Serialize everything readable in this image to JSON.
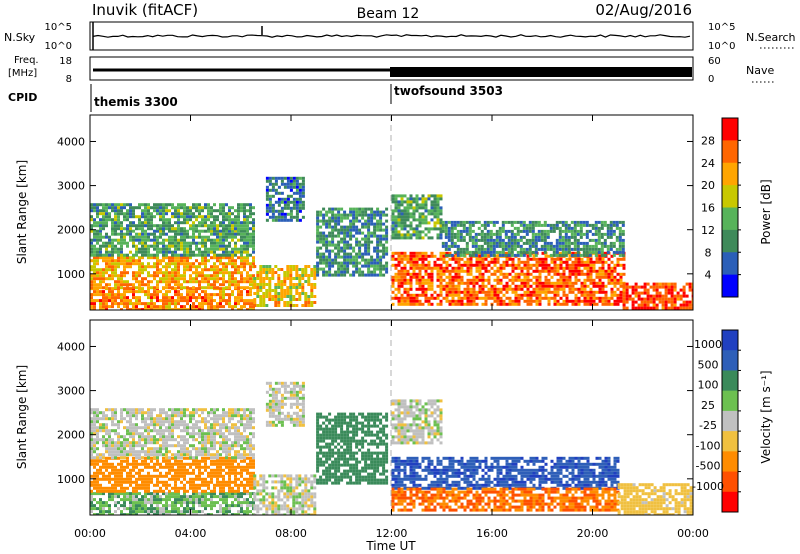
{
  "header": {
    "station": "Inuvik (fitACF)",
    "beam": "Beam 12",
    "date": "02/Aug/2016"
  },
  "status_panels": {
    "nsky_label": "N.Sky",
    "nsearch_label": "N.Search",
    "noise_ticks": [
      "10^5",
      "10^0"
    ],
    "freq_label_1": "Freq.",
    "freq_label_2": "[MHz]",
    "freq_ticks": [
      "18",
      "8"
    ],
    "nave_label": "Nave",
    "nave_ticks": [
      "60",
      "0"
    ],
    "cpid_label": "CPID",
    "cpid_segments": [
      {
        "name": "themis 3300",
        "start_hour": 0
      },
      {
        "name": "twofsound 3503",
        "start_hour": 12
      }
    ]
  },
  "x_axis": {
    "label": "Time UT",
    "ticks": [
      "00:00",
      "04:00",
      "08:00",
      "12:00",
      "16:00",
      "20:00",
      "00:00"
    ],
    "range_hours": [
      0,
      24
    ]
  },
  "y_axis": {
    "label": "Slant Range [km]",
    "ticks": [
      "4000",
      "3000",
      "2000",
      "1000"
    ],
    "range_km": [
      180,
      4600
    ]
  },
  "power_colorbar": {
    "label": "Power [dB]",
    "ticks": [
      "28",
      "24",
      "20",
      "16",
      "12",
      "8",
      "4"
    ],
    "colors": [
      "#0000ff",
      "#2b5fb8",
      "#3f8a5a",
      "#57b35a",
      "#c8c800",
      "#ffa500",
      "#ff6600",
      "#ff0000"
    ]
  },
  "velocity_colorbar": {
    "label": "Velocity [m s⁻¹]",
    "ticks": [
      "1000",
      "500",
      "100",
      "25",
      "-25",
      "-100",
      "-500",
      "-1000"
    ],
    "colors": [
      "#2040c0",
      "#2e5fb8",
      "#3a8a5a",
      "#6cc050",
      "#c0c0c0",
      "#f0c040",
      "#ff8c00",
      "#ff5000",
      "#ff0000"
    ]
  },
  "chart_data": [
    {
      "type": "heatmap",
      "panel": "power",
      "x": "UT hour",
      "y": "slant range (km)",
      "xlim": [
        0,
        24
      ],
      "ylim": [
        180,
        4600
      ],
      "zlabel": "Power [dB]",
      "zlim": [
        0,
        32
      ],
      "regions": [
        {
          "t": [
            0.0,
            6.5
          ],
          "r": [
            180,
            700
          ],
          "level": 24
        },
        {
          "t": [
            0.0,
            6.5
          ],
          "r": [
            700,
            1400
          ],
          "level": 22
        },
        {
          "t": [
            0.0,
            6.5
          ],
          "r": [
            1400,
            2000
          ],
          "level": 12
        },
        {
          "t": [
            0.0,
            6.5
          ],
          "r": [
            2000,
            2600
          ],
          "level": 12
        },
        {
          "t": [
            6.5,
            9.0
          ],
          "r": [
            300,
            1200
          ],
          "level": 20
        },
        {
          "t": [
            7.0,
            8.5
          ],
          "r": [
            2200,
            3200
          ],
          "level": 8
        },
        {
          "t": [
            9.0,
            11.8
          ],
          "r": [
            1000,
            2500
          ],
          "level": 10
        },
        {
          "t": [
            12.0,
            21.2
          ],
          "r": [
            300,
            1500
          ],
          "level": 26
        },
        {
          "t": [
            12.0,
            14.0
          ],
          "r": [
            1800,
            2800
          ],
          "level": 12
        },
        {
          "t": [
            14.0,
            21.2
          ],
          "r": [
            1400,
            2200
          ],
          "level": 10
        },
        {
          "t": [
            21.2,
            24.0
          ],
          "r": [
            200,
            800
          ],
          "level": 28
        }
      ]
    },
    {
      "type": "heatmap",
      "panel": "velocity",
      "x": "UT hour",
      "y": "slant range (km)",
      "xlim": [
        0,
        24
      ],
      "ylim": [
        180,
        4600
      ],
      "zlabel": "Velocity [m s⁻¹]",
      "zlim": [
        -1200,
        1200
      ],
      "regions": [
        {
          "t": [
            0.0,
            6.5
          ],
          "r": [
            180,
            700
          ],
          "value": 50
        },
        {
          "t": [
            0.0,
            6.5
          ],
          "r": [
            700,
            1500
          ],
          "value": -200
        },
        {
          "t": [
            0.0,
            6.5
          ],
          "r": [
            1500,
            2600
          ],
          "value": 0
        },
        {
          "t": [
            6.5,
            9.0
          ],
          "r": [
            200,
            1100
          ],
          "value": 0
        },
        {
          "t": [
            7.0,
            8.5
          ],
          "r": [
            2200,
            3200
          ],
          "value": 0
        },
        {
          "t": [
            9.0,
            11.8
          ],
          "r": [
            900,
            2500
          ],
          "value": 120
        },
        {
          "t": [
            12.0,
            21.0
          ],
          "r": [
            800,
            1500
          ],
          "value": 600
        },
        {
          "t": [
            12.0,
            21.0
          ],
          "r": [
            300,
            800
          ],
          "value": -300
        },
        {
          "t": [
            12.0,
            14.0
          ],
          "r": [
            1800,
            2800
          ],
          "value": 0
        },
        {
          "t": [
            21.0,
            24.0
          ],
          "r": [
            200,
            900
          ],
          "value": -60
        }
      ]
    }
  ]
}
